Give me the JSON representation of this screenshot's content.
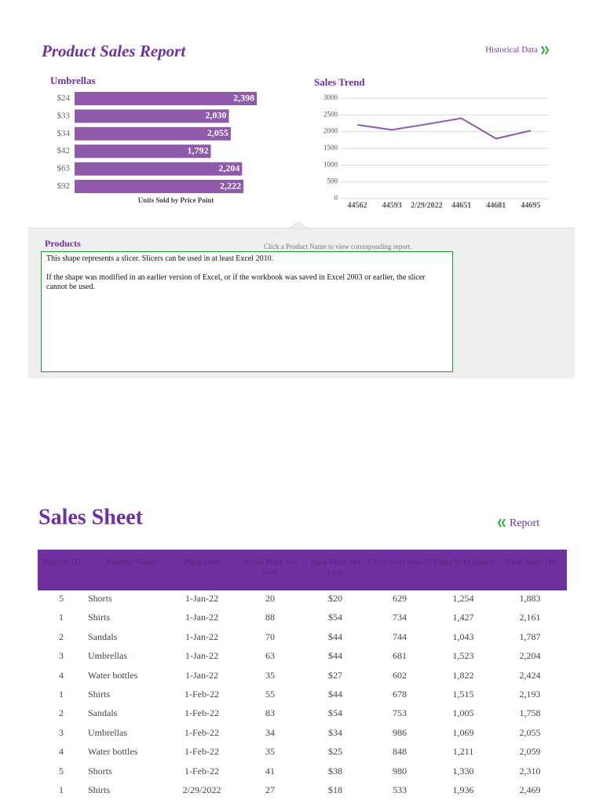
{
  "report_title": "Product Sales Report",
  "historical_link": "Historical Data",
  "chart_data": [
    {
      "type": "hbar",
      "title": "Umbrellas",
      "x_label": "Units Sold by Price Point",
      "categories": [
        "$24",
        "$33",
        "$34",
        "$42",
        "$63",
        "$92"
      ],
      "values": [
        2398,
        2030,
        2055,
        1792,
        2204,
        2222
      ],
      "value_labels": [
        "2,398",
        "2,030",
        "2,055",
        "1,792",
        "2,204",
        "2,222"
      ],
      "color": "#8e5aa9",
      "xlim": [
        0,
        2500
      ]
    },
    {
      "type": "line",
      "title": "Sales Trend",
      "categories": [
        "44562",
        "44593",
        "2/29/2022",
        "44651",
        "44681",
        "44695"
      ],
      "values": [
        2204,
        2055,
        2222,
        2398,
        1792,
        2030
      ],
      "color": "#8e5aa9",
      "ylim": [
        0,
        3000
      ],
      "yticks": [
        0,
        500,
        1000,
        1500,
        2000,
        2500,
        3000
      ],
      "grid": true
    }
  ],
  "products": {
    "title": "Products",
    "hint": "Click a Product Name to view corresponding report.",
    "slicer_text": [
      "This shape represents a slicer. Slicers can be used in at least Excel 2010.",
      "If the shape was modified in an earlier version of Excel, or if the workbook was saved in Excel 2003 or earlier, the slicer cannot be used."
    ]
  },
  "sheet": {
    "title": "Sales Sheet",
    "report_link": "Report",
    "table": {
      "columns": [
        "Product ID",
        "Product Name",
        "Price Date",
        "Retail Price Per Unit",
        "Bulk Price Per Unit",
        "Units Sold (retail)",
        "Units Sold (bulk)",
        "Total Sales ($)"
      ],
      "rows": [
        [
          "5",
          "Shorts",
          "1-Jan-22",
          "20",
          "$20",
          "629",
          "1,254",
          "1,883"
        ],
        [
          "1",
          "Shirts",
          "1-Jan-22",
          "88",
          "$54",
          "734",
          "1,427",
          "2,161"
        ],
        [
          "2",
          "Sandals",
          "1-Jan-22",
          "70",
          "$44",
          "744",
          "1,043",
          "1,787"
        ],
        [
          "3",
          "Umbrellas",
          "1-Jan-22",
          "63",
          "$44",
          "681",
          "1,523",
          "2,204"
        ],
        [
          "4",
          "Water bottles",
          "1-Jan-22",
          "35",
          "$27",
          "602",
          "1,822",
          "2,424"
        ],
        [
          "1",
          "Shirts",
          "1-Feb-22",
          "55",
          "$44",
          "678",
          "1,515",
          "2,193"
        ],
        [
          "2",
          "Sandals",
          "1-Feb-22",
          "83",
          "$54",
          "753",
          "1,005",
          "1,758"
        ],
        [
          "3",
          "Umbrellas",
          "1-Feb-22",
          "34",
          "$34",
          "986",
          "1,069",
          "2,055"
        ],
        [
          "4",
          "Water bottles",
          "1-Feb-22",
          "35",
          "$25",
          "848",
          "1,211",
          "2,059"
        ],
        [
          "5",
          "Shorts",
          "1-Feb-22",
          "41",
          "$38",
          "980",
          "1,330",
          "2,310"
        ],
        [
          "1",
          "Shirts",
          "2/29/2022",
          "27",
          "$18",
          "533",
          "1,936",
          "2,469"
        ]
      ]
    }
  }
}
